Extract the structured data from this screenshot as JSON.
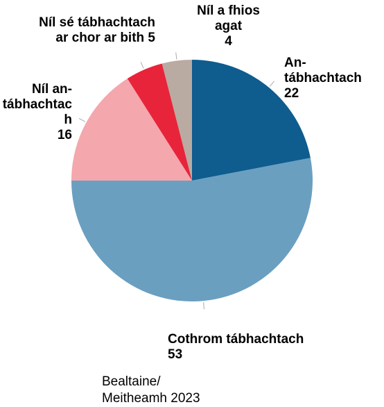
{
  "chart_data": {
    "type": "pie",
    "subtitle": "Bealtaine/ Meitheamh 2023",
    "categories": [
      "An-tábhachtach",
      "Cothrom tábhachtach",
      "Níl an-tábhachtach",
      "Níl sé tábhachtach ar chor ar bith",
      "Níl a fhios agat"
    ],
    "values": [
      22,
      53,
      16,
      5,
      4
    ],
    "colors": [
      "#0f5c8f",
      "#6a9fc0",
      "#f4a7ad",
      "#e8243a",
      "#b9aaa2"
    ]
  }
}
